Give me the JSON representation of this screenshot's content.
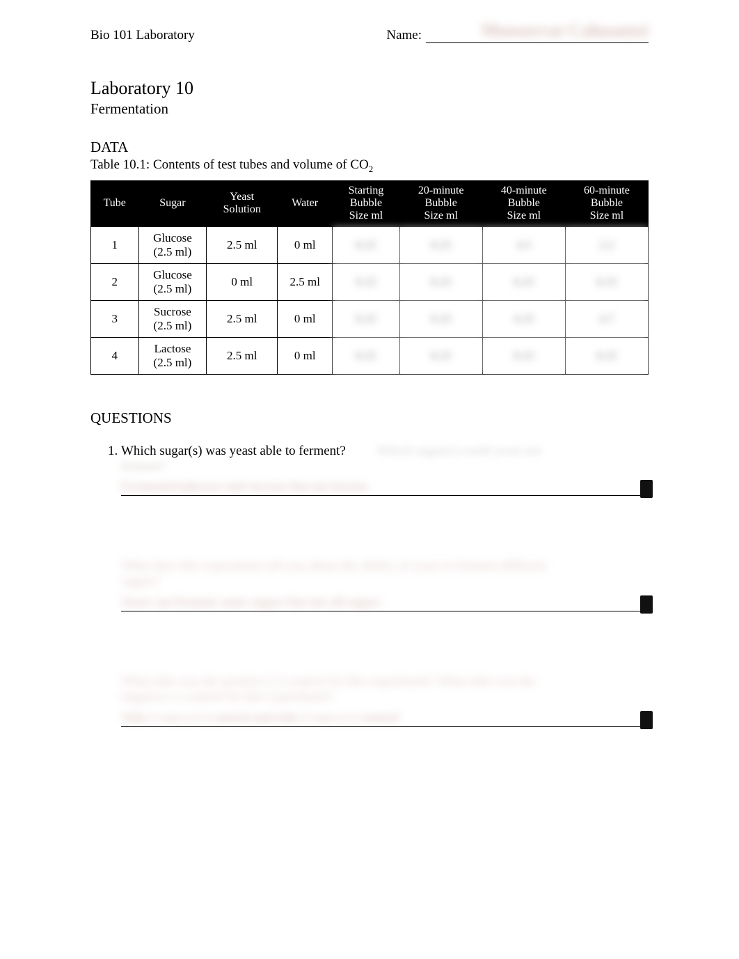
{
  "header": {
    "course": "Bio 101 Laboratory",
    "name_label": "Name:",
    "blurred_name": "Monserrat Cahuantzi"
  },
  "title": {
    "lab_number": "Laboratory 10",
    "subtitle": "Fermentation"
  },
  "data_section": {
    "heading": "DATA",
    "table_caption_prefix": "Table 10.1: Contents of test tubes and volume of CO",
    "table_caption_sub": "2"
  },
  "table": {
    "headers": [
      "Tube",
      "Sugar",
      "Yeast Solution",
      "Water",
      "Starting Bubble Size ml",
      "20-minute Bubble Size ml",
      "40-minute Bubble Size ml",
      "60-minute Bubble Size ml"
    ],
    "rows": [
      {
        "tube": "1",
        "sugar_line1": "Glucose",
        "sugar_line2": "(2.5 ml)",
        "yeast": "2.5 ml",
        "water": "0 ml",
        "c1": "0.25",
        "c2": "0.25",
        "c3": "4.5",
        "c4": "2.2"
      },
      {
        "tube": "2",
        "sugar_line1": "Glucose",
        "sugar_line2": "(2.5 ml)",
        "yeast": "0 ml",
        "water": "2.5 ml",
        "c1": "0.25",
        "c2": "0.25",
        "c3": "0.25",
        "c4": "0.25"
      },
      {
        "tube": "3",
        "sugar_line1": "Sucrose",
        "sugar_line2": "(2.5 ml)",
        "yeast": "2.5 ml",
        "water": "0 ml",
        "c1": "0.25",
        "c2": "0.25",
        "c3": "4.25",
        "c4": "4.7"
      },
      {
        "tube": "4",
        "sugar_line1": "Lactose",
        "sugar_line2": "(2.5 ml)",
        "yeast": "2.5 ml",
        "water": "0 ml",
        "c1": "0.25",
        "c2": "0.25",
        "c3": "0.25",
        "c4": "0.25"
      }
    ]
  },
  "questions": {
    "heading": "QUESTIONS",
    "q1": {
      "text": "Which sugar(s) was yeast able to ferment?",
      "extra": "Which sugar(s) could yeast not",
      "extra2": "ferment?",
      "answer": "Fermented glucose and sucrose but not lactose"
    },
    "q2": {
      "text": "What does this experiment tell you about the ability of yeast to ferment different",
      "text2": "sugars?",
      "answer": "Yeast can ferment some sugars but not all sugars"
    },
    "q3": {
      "text": "What tube was the positive      (+) control for this experiment? What tube was the",
      "text2": "negative   (-) control for this experiment?",
      "answer": "Tube 1 was a (+) control and tube 2 was a (-) control"
    }
  },
  "styles": {
    "page_bg": "#ffffff",
    "text_color": "#000000",
    "table_header_bg": "#000000",
    "table_header_fg": "#ffffff",
    "blur_color": "#c09890",
    "body_font_size": 19,
    "title_font_size": 26,
    "subtitle_font_size": 21
  }
}
